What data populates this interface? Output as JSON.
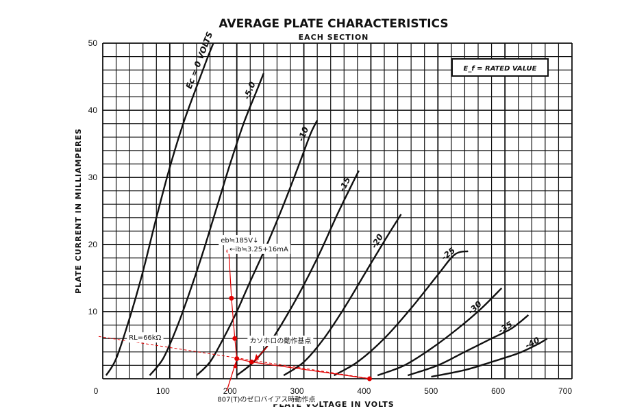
{
  "chart_data": {
    "type": "line",
    "title": "AVERAGE PLATE CHARACTERISTICS",
    "subtitle": "EACH SECTION",
    "xlabel": "PLATE VOLTAGE IN VOLTS",
    "ylabel": "PLATE CURRENT IN MILLIAMPERES",
    "xlim": [
      0,
      700
    ],
    "ylim": [
      0,
      50
    ],
    "x_ticks": [
      0,
      100,
      200,
      300,
      400,
      500,
      600,
      700
    ],
    "y_ticks": [
      10,
      20,
      30,
      40,
      50
    ],
    "grid": true,
    "condition_note": "E_f = RATED VALUE",
    "series": [
      {
        "name": "Ec = 0 VOLTS",
        "label": "Ec = 0 VOLTS",
        "points": [
          [
            5,
            0.5
          ],
          [
            20,
            3
          ],
          [
            40,
            9
          ],
          [
            60,
            16
          ],
          [
            80,
            24
          ],
          [
            100,
            31.5
          ],
          [
            120,
            38
          ],
          [
            140,
            43.5
          ],
          [
            155,
            47.5
          ],
          [
            165,
            50
          ]
        ]
      },
      {
        "name": "-5.0",
        "label": "-5.0",
        "points": [
          [
            70,
            0.5
          ],
          [
            90,
            3
          ],
          [
            110,
            7.5
          ],
          [
            130,
            13
          ],
          [
            150,
            19
          ],
          [
            170,
            25.5
          ],
          [
            190,
            32
          ],
          [
            210,
            38
          ],
          [
            230,
            43
          ],
          [
            240,
            45.5
          ]
        ]
      },
      {
        "name": "-10",
        "label": "-10",
        "points": [
          [
            140,
            0.5
          ],
          [
            160,
            2.5
          ],
          [
            180,
            6
          ],
          [
            200,
            10
          ],
          [
            220,
            14.5
          ],
          [
            245,
            20
          ],
          [
            270,
            26
          ],
          [
            295,
            32.5
          ],
          [
            310,
            36.5
          ],
          [
            320,
            38.5
          ]
        ]
      },
      {
        "name": "-15",
        "label": "-15",
        "points": [
          [
            200,
            0.5
          ],
          [
            225,
            2.5
          ],
          [
            250,
            5.5
          ],
          [
            275,
            9.5
          ],
          [
            300,
            14
          ],
          [
            325,
            19
          ],
          [
            350,
            24.5
          ],
          [
            372,
            29
          ],
          [
            382,
            31
          ]
        ]
      },
      {
        "name": "-20",
        "label": "-20",
        "points": [
          [
            270,
            0.5
          ],
          [
            300,
            2.5
          ],
          [
            330,
            6
          ],
          [
            360,
            10.5
          ],
          [
            390,
            15.5
          ],
          [
            420,
            20.5
          ],
          [
            445,
            24.5
          ]
        ]
      },
      {
        "name": "-25",
        "label": "-25",
        "points": [
          [
            345,
            0.5
          ],
          [
            380,
            2.5
          ],
          [
            420,
            6
          ],
          [
            460,
            10.5
          ],
          [
            500,
            15.5
          ],
          [
            525,
            18.5
          ],
          [
            545,
            19
          ]
        ]
      },
      {
        "name": "-30",
        "label": "-30",
        "points": [
          [
            410,
            0.5
          ],
          [
            450,
            2
          ],
          [
            490,
            4.5
          ],
          [
            530,
            7.5
          ],
          [
            565,
            10.5
          ],
          [
            595,
            13.5
          ]
        ]
      },
      {
        "name": "-35",
        "label": "-35",
        "points": [
          [
            455,
            0.5
          ],
          [
            500,
            2
          ],
          [
            540,
            4
          ],
          [
            580,
            6
          ],
          [
            610,
            7.5
          ],
          [
            635,
            9.5
          ]
        ]
      },
      {
        "name": "-40",
        "label": "-40",
        "points": [
          [
            490,
            0.3
          ],
          [
            540,
            1.3
          ],
          [
            580,
            2.5
          ],
          [
            620,
            3.8
          ],
          [
            650,
            5.2
          ],
          [
            663,
            6
          ]
        ]
      }
    ],
    "overlays": {
      "load_line": {
        "label": "RL=66kΩ",
        "points": [
          [
            0,
            6.3
          ],
          [
            400,
            0
          ]
        ],
        "style": "dashed"
      },
      "operating_path": {
        "points": [
          [
            188,
            19
          ],
          [
            192,
            12
          ],
          [
            197,
            6
          ],
          [
            200,
            3
          ],
          [
            222,
            2.5
          ],
          [
            398,
            0
          ]
        ]
      },
      "annotations": [
        {
          "text": "eb≒185V↓",
          "x": 175,
          "y": 20.3
        },
        {
          "text": "←ib≒3.25+16mA",
          "x": 188,
          "y": 19
        },
        {
          "text": "RL=66kΩ",
          "x": 38,
          "y": 5.8
        },
        {
          "text": "カソホロの動作基点",
          "x": 218,
          "y": 5.3
        },
        {
          "text": "807(T)のゼロバイアス時動作点",
          "x": 170,
          "y": -3.4
        }
      ]
    }
  }
}
